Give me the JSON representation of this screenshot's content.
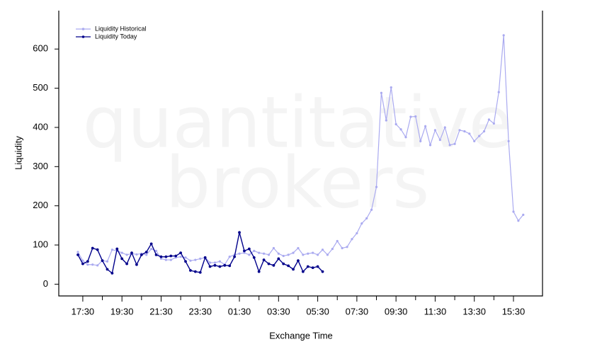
{
  "chart_data": {
    "type": "line",
    "watermark": [
      "quantitative",
      "brokers"
    ],
    "xlabel": "Exchange Time",
    "ylabel": "Liquidity",
    "x": [
      "17:15",
      "17:30",
      "17:45",
      "18:00",
      "18:15",
      "18:30",
      "18:45",
      "19:00",
      "19:15",
      "19:30",
      "19:45",
      "20:00",
      "20:15",
      "20:30",
      "20:45",
      "21:00",
      "21:15",
      "21:30",
      "21:45",
      "22:00",
      "22:15",
      "22:30",
      "22:45",
      "23:00",
      "23:15",
      "23:30",
      "23:45",
      "00:00",
      "00:15",
      "00:30",
      "00:45",
      "01:00",
      "01:15",
      "01:30",
      "01:45",
      "02:00",
      "02:15",
      "02:30",
      "02:45",
      "03:00",
      "03:15",
      "03:30",
      "03:45",
      "04:00",
      "04:15",
      "04:30",
      "04:45",
      "05:00",
      "05:15",
      "05:30",
      "05:45",
      "06:00",
      "06:15",
      "06:30",
      "06:45",
      "07:00",
      "07:15",
      "07:30",
      "07:45",
      "08:00",
      "08:15",
      "08:30",
      "08:45",
      "09:00",
      "09:15",
      "09:30",
      "09:45",
      "10:00",
      "10:15",
      "10:30",
      "10:45",
      "11:00",
      "11:15",
      "11:30",
      "11:45",
      "12:00",
      "12:15",
      "12:30",
      "12:45",
      "13:00",
      "13:15",
      "13:30",
      "13:45",
      "14:00",
      "14:15",
      "14:30",
      "14:45",
      "15:00",
      "15:15",
      "15:30",
      "15:45",
      "16:00"
    ],
    "xticks": [
      "17:30",
      "19:30",
      "21:30",
      "23:30",
      "01:30",
      "03:30",
      "05:30",
      "07:30",
      "09:30",
      "11:30",
      "13:30",
      "15:30"
    ],
    "ylim": [
      -30,
      698
    ],
    "yticks": [
      0,
      100,
      200,
      300,
      400,
      500,
      600
    ],
    "legend": "upper left",
    "series": [
      {
        "name": "Liquidity Historical",
        "color": "#aaaaf0",
        "values": [
          82,
          60,
          50,
          50,
          48,
          60,
          58,
          88,
          85,
          80,
          75,
          78,
          76,
          78,
          75,
          90,
          85,
          65,
          62,
          62,
          68,
          70,
          68,
          60,
          62,
          65,
          68,
          55,
          55,
          58,
          50,
          70,
          75,
          78,
          80,
          75,
          85,
          80,
          78,
          75,
          92,
          78,
          72,
          75,
          80,
          92,
          75,
          78,
          80,
          75,
          88,
          75,
          90,
          110,
          92,
          95,
          115,
          130,
          155,
          168,
          190,
          248,
          488,
          418,
          502,
          408,
          395,
          375,
          427,
          428,
          365,
          403,
          355,
          393,
          368,
          400,
          355,
          358,
          393,
          390,
          384,
          365,
          378,
          390,
          420,
          410,
          490,
          635,
          365,
          185,
          162,
          177
        ]
      },
      {
        "name": "Liquidity Today",
        "color": "#00008b",
        "values": [
          75,
          52,
          58,
          92,
          88,
          60,
          38,
          28,
          90,
          65,
          52,
          80,
          50,
          75,
          82,
          103,
          75,
          70,
          70,
          72,
          72,
          80,
          58,
          35,
          32,
          30,
          68,
          45,
          48,
          45,
          48,
          47,
          70,
          132,
          85,
          90,
          68,
          32,
          62,
          52,
          48,
          65,
          52,
          47,
          38,
          60,
          32,
          45,
          42,
          45,
          32,
          null,
          null,
          null,
          null,
          null,
          null,
          null,
          null,
          null,
          null,
          null,
          null,
          null,
          null,
          null,
          null,
          null,
          null,
          null,
          null,
          null,
          null,
          null,
          null,
          null,
          null,
          null,
          null,
          null,
          null,
          null,
          null,
          null,
          null,
          null,
          null,
          null,
          null,
          null,
          null,
          null
        ]
      }
    ]
  }
}
